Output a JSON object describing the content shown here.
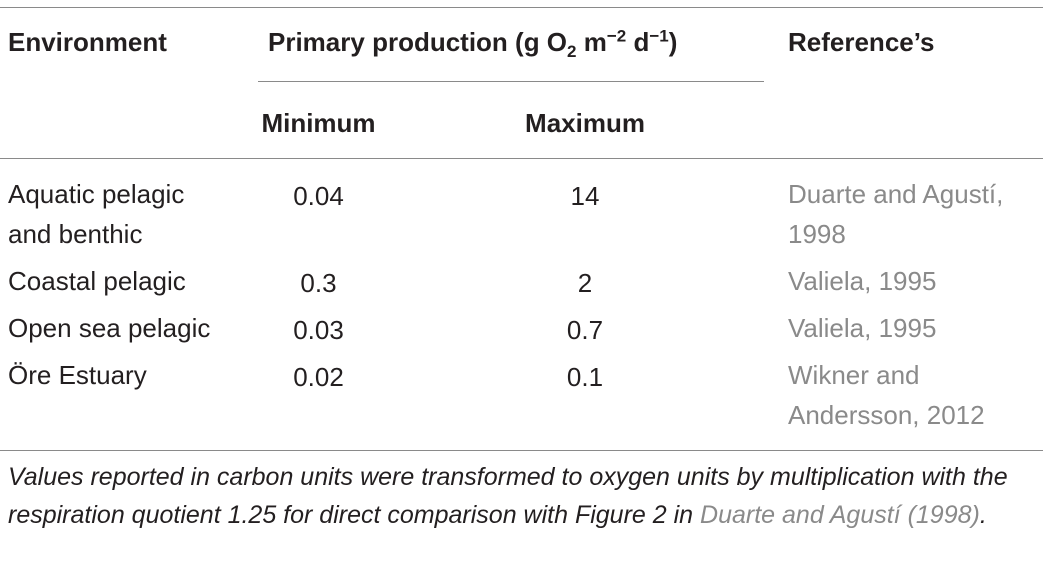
{
  "table": {
    "headers": {
      "environment": "Environment",
      "primary_production": "Primary production (g O",
      "pp_sub": "2",
      "pp_mid": " m",
      "pp_sup1": "−2",
      "pp_mid2": " d",
      "pp_sup2": "−1",
      "pp_end": ")",
      "reference": "Reference’s",
      "minimum": "Minimum",
      "maximum": "Maximum"
    },
    "rows": [
      {
        "env_line1": "Aquatic pelagic",
        "env_line2": "and benthic",
        "min": "0.04",
        "max": "14",
        "ref_line1": "Duarte and Agustí,",
        "ref_line2": "1998"
      },
      {
        "env_line1": "Coastal pelagic",
        "env_line2": "",
        "min": "0.3",
        "max": "2",
        "ref_line1": "Valiela, 1995",
        "ref_line2": ""
      },
      {
        "env_line1": "Open sea pelagic",
        "env_line2": "",
        "min": "0.03",
        "max": "0.7",
        "ref_line1": "Valiela, 1995",
        "ref_line2": ""
      },
      {
        "env_line1": "Öre Estuary",
        "env_line2": "",
        "min": "0.02",
        "max": "0.1",
        "ref_line1": "Wikner and",
        "ref_line2": "Andersson, 2012"
      }
    ],
    "footnote": {
      "text": "Values reported in carbon units were transformed to oxygen units by multiplication with the respiration quotient 1.25 for direct comparison with Figure 2 in ",
      "link": "Duarte and Agustí (1998)",
      "end": "."
    }
  }
}
